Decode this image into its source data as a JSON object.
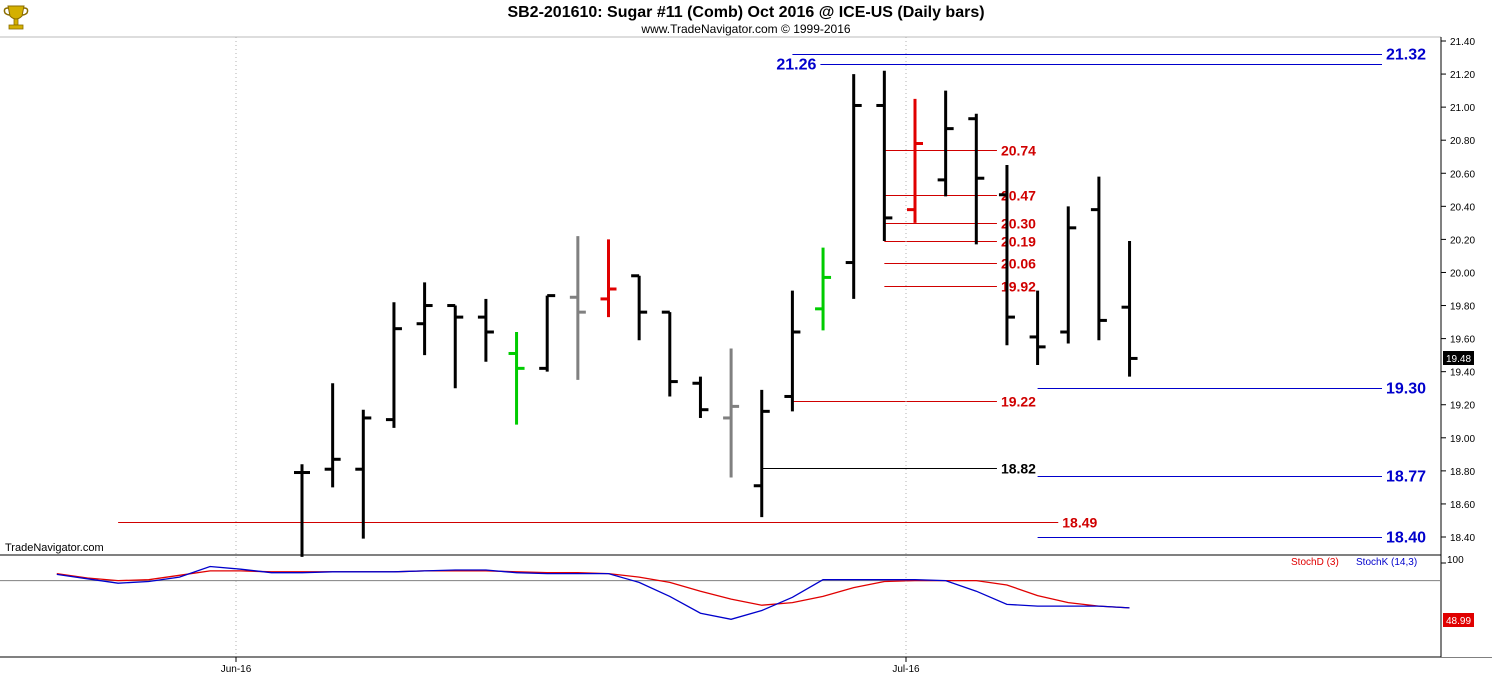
{
  "header": {
    "title": "SB2-201610:  Sugar #11 (Comb) Oct 2016 @ ICE-US  (Daily bars)",
    "subtitle": "www.TradeNavigator.com © 1999-2016"
  },
  "watermark": "TradeNavigator.com",
  "logo_icon": "trophy-icon",
  "colors": {
    "up": "#000000",
    "red_bar": "#e00000",
    "gray_bar": "#808080",
    "green_bar": "#00cc00",
    "red_level": "#d00000",
    "blue_level": "#0000cc",
    "black_level": "#000000",
    "stoch_d": "#e00000",
    "stoch_k": "#0000cc"
  },
  "chart_data": [
    {
      "type": "ohlc",
      "ylim": [
        18.3,
        21.45
      ],
      "yticks": [
        "21.40",
        "21.20",
        "21.00",
        "20.80",
        "20.60",
        "20.40",
        "20.20",
        "20.00",
        "19.80",
        "19.60",
        "19.40",
        "19.20",
        "19.00",
        "18.80",
        "18.60",
        "18.40"
      ],
      "x_labels": [
        {
          "label": "Jun-16",
          "index": 0
        },
        {
          "label": "Jul-16",
          "index": 18
        }
      ],
      "last_price": "19.48",
      "bars": [
        {
          "o": 18.79,
          "h": 18.84,
          "l": 18.28,
          "c": 18.79,
          "color": "black"
        },
        {
          "o": 18.81,
          "h": 19.33,
          "l": 18.7,
          "c": 18.87,
          "color": "black"
        },
        {
          "o": 18.81,
          "h": 19.17,
          "l": 18.39,
          "c": 19.12,
          "color": "black"
        },
        {
          "o": 19.11,
          "h": 19.82,
          "l": 19.06,
          "c": 19.66,
          "color": "black"
        },
        {
          "o": 19.69,
          "h": 19.94,
          "l": 19.5,
          "c": 19.8,
          "color": "black"
        },
        {
          "o": 19.8,
          "h": 19.8,
          "l": 19.3,
          "c": 19.73,
          "color": "black"
        },
        {
          "o": 19.73,
          "h": 19.84,
          "l": 19.46,
          "c": 19.64,
          "color": "black"
        },
        {
          "o": 19.51,
          "h": 19.64,
          "l": 19.08,
          "c": 19.42,
          "color": "green"
        },
        {
          "o": 19.42,
          "h": 19.86,
          "l": 19.4,
          "c": 19.86,
          "color": "black"
        },
        {
          "o": 19.85,
          "h": 20.22,
          "l": 19.35,
          "c": 19.76,
          "color": "gray"
        },
        {
          "o": 19.84,
          "h": 20.2,
          "l": 19.73,
          "c": 19.9,
          "color": "red"
        },
        {
          "o": 19.98,
          "h": 19.98,
          "l": 19.59,
          "c": 19.76,
          "color": "black"
        },
        {
          "o": 19.76,
          "h": 19.76,
          "l": 19.25,
          "c": 19.34,
          "color": "black"
        },
        {
          "o": 19.33,
          "h": 19.37,
          "l": 19.12,
          "c": 19.17,
          "color": "black"
        },
        {
          "o": 19.12,
          "h": 19.54,
          "l": 18.76,
          "c": 19.19,
          "color": "gray"
        },
        {
          "o": 18.71,
          "h": 19.29,
          "l": 18.52,
          "c": 19.16,
          "color": "black"
        },
        {
          "o": 19.25,
          "h": 19.89,
          "l": 19.16,
          "c": 19.64,
          "color": "black"
        },
        {
          "o": 19.78,
          "h": 20.15,
          "l": 19.65,
          "c": 19.97,
          "color": "green"
        },
        {
          "o": 20.06,
          "h": 21.2,
          "l": 19.84,
          "c": 21.01,
          "color": "black"
        },
        {
          "o": 21.01,
          "h": 21.22,
          "l": 20.19,
          "c": 20.33,
          "color": "black"
        },
        {
          "o": 20.38,
          "h": 21.05,
          "l": 20.3,
          "c": 20.78,
          "color": "red"
        },
        {
          "o": 20.56,
          "h": 21.1,
          "l": 20.46,
          "c": 20.87,
          "color": "black"
        },
        {
          "o": 20.93,
          "h": 20.96,
          "l": 20.17,
          "c": 20.57,
          "color": "black"
        },
        {
          "o": 20.47,
          "h": 20.65,
          "l": 19.56,
          "c": 19.73,
          "color": "black"
        },
        {
          "o": 19.61,
          "h": 19.89,
          "l": 19.44,
          "c": 19.55,
          "color": "black"
        },
        {
          "o": 19.64,
          "h": 20.4,
          "l": 19.57,
          "c": 20.27,
          "color": "black"
        },
        {
          "o": 20.38,
          "h": 20.58,
          "l": 19.59,
          "c": 19.71,
          "color": "black"
        },
        {
          "o": 19.79,
          "h": 20.19,
          "l": 19.37,
          "c": 19.48,
          "color": "black"
        }
      ],
      "levels": [
        {
          "label": "21.32",
          "value": 21.32,
          "color": "blue",
          "from": 16.0,
          "to": 23.0,
          "label_side": "right"
        },
        {
          "label": "21.26",
          "value": 21.26,
          "color": "blue",
          "from": 16.0,
          "to": 23.0,
          "label_side": "left"
        },
        {
          "label": "20.74",
          "value": 20.74,
          "color": "red",
          "from": 19.0,
          "to": 23.0,
          "label_side": "right"
        },
        {
          "label": "20.47",
          "value": 20.47,
          "color": "red",
          "from": 19.0,
          "to": 23.0,
          "label_side": "right"
        },
        {
          "label": "20.30",
          "value": 20.3,
          "color": "red",
          "from": 19.0,
          "to": 23.0,
          "label_side": "right"
        },
        {
          "label": "20.19",
          "value": 20.19,
          "color": "red",
          "from": 19.0,
          "to": 23.0,
          "label_side": "right"
        },
        {
          "label": "20.06",
          "value": 20.06,
          "color": "red",
          "from": 19.0,
          "to": 23.0,
          "label_side": "right"
        },
        {
          "label": "19.92",
          "value": 19.92,
          "color": "red",
          "from": 19.0,
          "to": 23.0,
          "label_side": "right"
        },
        {
          "label": "19.30",
          "value": 19.3,
          "color": "blue",
          "from": 24.0,
          "to": 29.0,
          "label_side": "right"
        },
        {
          "label": "19.22",
          "value": 19.22,
          "color": "red",
          "from": 16.0,
          "to": 23.0,
          "label_side": "right"
        },
        {
          "label": "18.82",
          "value": 18.82,
          "color": "black",
          "from": 15.0,
          "to": 23.0,
          "label_side": "right"
        },
        {
          "label": "18.77",
          "value": 18.77,
          "color": "blue",
          "from": 24.0,
          "to": 29.0,
          "label_side": "right"
        },
        {
          "label": "18.49",
          "value": 18.49,
          "color": "red",
          "from": -6.0,
          "to": 25.0,
          "label_side": "right"
        },
        {
          "label": "18.40",
          "value": 18.4,
          "color": "blue",
          "from": 24.0,
          "to": 29.0,
          "label_side": "right"
        }
      ]
    },
    {
      "type": "line",
      "name": "Stochastic",
      "ylim": [
        0,
        110
      ],
      "ytick": "100",
      "ref_line": 80,
      "last_value": "48.99",
      "legend": [
        "StochD (3)",
        "StochK (14,3)"
      ],
      "x": [
        -8,
        -7,
        -6,
        -5,
        -4,
        -3,
        -2,
        -1,
        0,
        1,
        2,
        3,
        4,
        5,
        6,
        7,
        8,
        9,
        10,
        11,
        12,
        13,
        14,
        15,
        16,
        17,
        18,
        19,
        20,
        21,
        22,
        23,
        24,
        25,
        26,
        27
      ],
      "series": [
        {
          "name": "StochD (3)",
          "color": "stoch_d",
          "values": [
            88,
            83,
            80,
            81,
            86,
            91,
            91,
            90,
            90,
            90,
            90,
            90,
            91,
            91,
            91,
            90,
            89,
            89,
            88,
            84,
            78,
            68,
            59,
            52,
            55,
            62,
            72,
            79,
            80,
            80,
            80,
            75,
            63,
            55,
            51,
            49
          ]
        },
        {
          "name": "StochK (14,3)",
          "color": "stoch_k",
          "values": [
            87,
            82,
            77,
            79,
            84,
            96,
            93,
            89,
            89,
            90,
            90,
            90,
            91,
            92,
            92,
            89,
            88,
            88,
            88,
            78,
            62,
            43,
            36,
            46,
            61,
            81,
            81,
            81,
            81,
            80,
            68,
            53,
            51,
            51,
            51,
            49
          ]
        }
      ]
    }
  ]
}
